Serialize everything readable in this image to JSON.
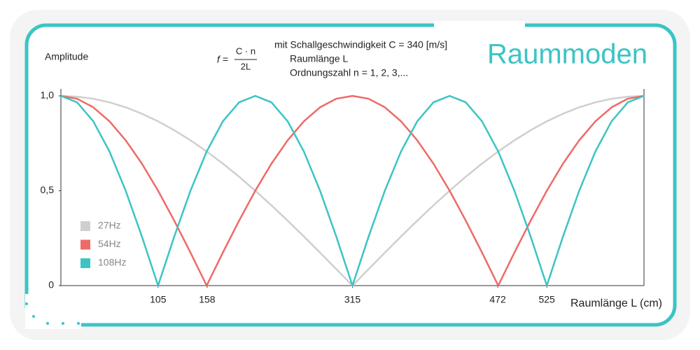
{
  "chart_data": {
    "type": "line",
    "title": "Raummoden",
    "y_label": "Amplitude",
    "x_label": "Raumlänge L (cm)",
    "formula": {
      "lhs": "f =",
      "numerator": "C · n",
      "denominator": "2L"
    },
    "notes": [
      "mit Schallgeschwindigkeit C = 340 [m/s]",
      "Raumlänge L",
      "Ordnungszahl n = 1, 2, 3,..."
    ],
    "x": [
      0,
      17.5,
      35,
      52.5,
      70,
      87.5,
      105,
      122.5,
      140,
      157.5,
      175,
      192.5,
      210,
      227.5,
      245,
      262.5,
      280,
      297.5,
      315,
      332.5,
      350,
      367.5,
      385,
      402.5,
      420,
      437.5,
      455,
      472.5,
      490,
      507.5,
      525,
      542.5,
      560,
      577.5,
      595,
      612.5,
      630
    ],
    "series": [
      {
        "name": "27Hz",
        "color": "#cfcfcf",
        "values": [
          1,
          0.996,
          0.985,
          0.966,
          0.94,
          0.906,
          0.866,
          0.819,
          0.766,
          0.707,
          0.643,
          0.574,
          0.5,
          0.423,
          0.342,
          0.259,
          0.174,
          0.087,
          0,
          0.087,
          0.174,
          0.259,
          0.342,
          0.423,
          0.5,
          0.574,
          0.643,
          0.707,
          0.766,
          0.819,
          0.866,
          0.906,
          0.94,
          0.966,
          0.985,
          0.996,
          1
        ]
      },
      {
        "name": "54Hz",
        "color": "#ee6a67",
        "values": [
          1,
          0.985,
          0.94,
          0.866,
          0.766,
          0.643,
          0.5,
          0.342,
          0.174,
          0,
          0.174,
          0.342,
          0.5,
          0.643,
          0.766,
          0.866,
          0.94,
          0.985,
          1,
          0.985,
          0.94,
          0.866,
          0.766,
          0.643,
          0.5,
          0.342,
          0.174,
          0,
          0.174,
          0.342,
          0.5,
          0.643,
          0.766,
          0.866,
          0.94,
          0.985,
          1
        ]
      },
      {
        "name": "108Hz",
        "color": "#3cc4c4",
        "values": [
          1,
          0.966,
          0.866,
          0.707,
          0.5,
          0.259,
          0,
          0.259,
          0.5,
          0.707,
          0.866,
          0.966,
          1,
          0.966,
          0.866,
          0.707,
          0.5,
          0.259,
          0,
          0.259,
          0.5,
          0.707,
          0.866,
          0.966,
          1,
          0.966,
          0.866,
          0.707,
          0.5,
          0.259,
          0,
          0.259,
          0.5,
          0.707,
          0.866,
          0.966,
          1
        ]
      }
    ],
    "xlim": [
      0,
      630
    ],
    "xticks": [
      105,
      158,
      315,
      472,
      525
    ],
    "ylim": [
      0,
      1
    ],
    "yticks": [
      0,
      {
        "value": 0.5,
        "label": "0,5"
      },
      {
        "value": 1,
        "label": "1,0"
      }
    ],
    "grid": false,
    "legend": "lower left"
  }
}
